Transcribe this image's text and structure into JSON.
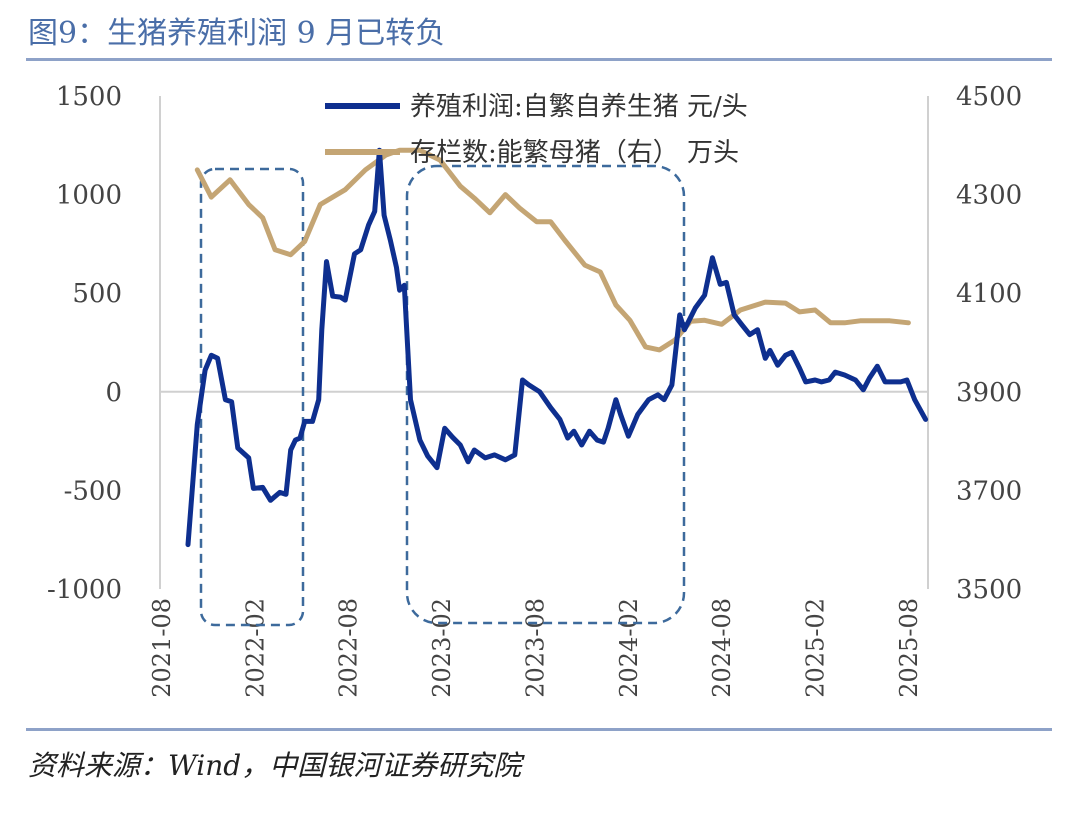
{
  "title": "图9：生猪养殖利润 9 月已转负",
  "source": "资料来源：Wind，中国银河证券研究院",
  "chart_data": {
    "type": "line",
    "title": "图9：生猪养殖利润 9 月已转负",
    "x_origin": "2021-08",
    "x_unit": "months since 2021-08",
    "x_ticks": [
      "2021-08",
      "2022-02",
      "2022-08",
      "2023-02",
      "2023-08",
      "2024-02",
      "2024-08",
      "2025-02",
      "2025-08"
    ],
    "y_left": {
      "range": [
        -1000,
        1500
      ],
      "ticks": [
        "-1000",
        "-500",
        "0",
        "500",
        "1000",
        "1500"
      ]
    },
    "y_right": {
      "range": [
        3500,
        4500
      ],
      "ticks": [
        "3500",
        "3700",
        "3900",
        "4100",
        "4300",
        "4500"
      ]
    },
    "legend_position": "top-center",
    "grid": false,
    "series": [
      {
        "name": "养殖利润:自繁自养生猪 元/头",
        "axis": "left",
        "color": "#0e2f8f",
        "points": [
          [
            1.8,
            -775
          ],
          [
            2.4,
            -165
          ],
          [
            2.9,
            110
          ],
          [
            3.3,
            185
          ],
          [
            3.7,
            170
          ],
          [
            4.2,
            -40
          ],
          [
            4.6,
            -50
          ],
          [
            5.0,
            -285
          ],
          [
            5.7,
            -335
          ],
          [
            6.0,
            -490
          ],
          [
            6.6,
            -485
          ],
          [
            7.1,
            -550
          ],
          [
            7.7,
            -510
          ],
          [
            8.1,
            -520
          ],
          [
            8.4,
            -295
          ],
          [
            8.7,
            -245
          ],
          [
            9.0,
            -235
          ],
          [
            9.3,
            -150
          ],
          [
            9.8,
            -150
          ],
          [
            10.2,
            -40
          ],
          [
            10.4,
            315
          ],
          [
            10.7,
            660
          ],
          [
            11.1,
            485
          ],
          [
            11.6,
            480
          ],
          [
            11.9,
            465
          ],
          [
            12.5,
            700
          ],
          [
            12.9,
            720
          ],
          [
            13.4,
            845
          ],
          [
            13.8,
            915
          ],
          [
            14.1,
            1225
          ],
          [
            14.4,
            895
          ],
          [
            14.8,
            770
          ],
          [
            15.2,
            630
          ],
          [
            15.4,
            515
          ],
          [
            15.7,
            540
          ],
          [
            16.1,
            -40
          ],
          [
            16.7,
            -245
          ],
          [
            17.2,
            -325
          ],
          [
            17.8,
            -385
          ],
          [
            18.3,
            -185
          ],
          [
            18.8,
            -230
          ],
          [
            19.3,
            -270
          ],
          [
            19.8,
            -355
          ],
          [
            20.2,
            -295
          ],
          [
            20.9,
            -335
          ],
          [
            21.5,
            -320
          ],
          [
            22.2,
            -345
          ],
          [
            22.8,
            -320
          ],
          [
            23.3,
            60
          ],
          [
            23.7,
            35
          ],
          [
            24.4,
            0
          ],
          [
            25.1,
            -80
          ],
          [
            25.7,
            -140
          ],
          [
            26.2,
            -235
          ],
          [
            26.6,
            -200
          ],
          [
            27.1,
            -270
          ],
          [
            27.6,
            -200
          ],
          [
            28.1,
            -245
          ],
          [
            28.5,
            -255
          ],
          [
            28.8,
            -185
          ],
          [
            29.3,
            -40
          ],
          [
            29.6,
            -115
          ],
          [
            30.1,
            -225
          ],
          [
            30.7,
            -115
          ],
          [
            31.4,
            -40
          ],
          [
            32.0,
            -15
          ],
          [
            32.4,
            -40
          ],
          [
            32.9,
            35
          ],
          [
            33.4,
            390
          ],
          [
            33.7,
            315
          ],
          [
            34.4,
            425
          ],
          [
            35.0,
            490
          ],
          [
            35.5,
            680
          ],
          [
            36.0,
            545
          ],
          [
            36.4,
            555
          ],
          [
            36.9,
            390
          ],
          [
            37.4,
            340
          ],
          [
            37.9,
            290
          ],
          [
            38.4,
            315
          ],
          [
            38.9,
            170
          ],
          [
            39.2,
            210
          ],
          [
            39.7,
            135
          ],
          [
            40.2,
            185
          ],
          [
            40.6,
            200
          ],
          [
            41.1,
            120
          ],
          [
            41.5,
            50
          ],
          [
            42.1,
            60
          ],
          [
            42.5,
            50
          ],
          [
            43.0,
            60
          ],
          [
            43.4,
            100
          ],
          [
            44.0,
            85
          ],
          [
            44.7,
            60
          ],
          [
            45.2,
            10
          ],
          [
            45.6,
            70
          ],
          [
            46.1,
            130
          ],
          [
            46.6,
            50
          ],
          [
            47.1,
            50
          ],
          [
            47.6,
            50
          ],
          [
            48.0,
            60
          ],
          [
            48.5,
            -40
          ],
          [
            49.2,
            -140
          ]
        ]
      },
      {
        "name": "存栏数:能繁母猪（右） 万头",
        "axis": "right",
        "color": "#c4a574",
        "points": [
          [
            2.4,
            4350
          ],
          [
            3.3,
            4295
          ],
          [
            4.5,
            4330
          ],
          [
            5.7,
            4280
          ],
          [
            6.6,
            4253
          ],
          [
            7.4,
            4188
          ],
          [
            8.4,
            4178
          ],
          [
            9.3,
            4205
          ],
          [
            10.3,
            4280
          ],
          [
            11.9,
            4310
          ],
          [
            13.2,
            4350
          ],
          [
            14.5,
            4380
          ],
          [
            15.4,
            4390
          ],
          [
            16.7,
            4390
          ],
          [
            18.0,
            4370
          ],
          [
            19.3,
            4317
          ],
          [
            20.2,
            4293
          ],
          [
            21.2,
            4263
          ],
          [
            22.2,
            4300
          ],
          [
            23.1,
            4273
          ],
          [
            24.2,
            4245
          ],
          [
            25.1,
            4245
          ],
          [
            26.0,
            4208
          ],
          [
            27.3,
            4157
          ],
          [
            28.3,
            4143
          ],
          [
            29.3,
            4076
          ],
          [
            30.2,
            4045
          ],
          [
            31.2,
            3991
          ],
          [
            32.1,
            3985
          ],
          [
            33.1,
            4005
          ],
          [
            34.1,
            4043
          ],
          [
            35.0,
            4045
          ],
          [
            36.1,
            4037
          ],
          [
            37.3,
            4066
          ],
          [
            38.9,
            4082
          ],
          [
            40.2,
            4080
          ],
          [
            41.1,
            4062
          ],
          [
            42.1,
            4066
          ],
          [
            43.1,
            4040
          ],
          [
            44.0,
            4040
          ],
          [
            45.0,
            4044
          ],
          [
            46.9,
            4044
          ],
          [
            48.1,
            4040
          ]
        ]
      }
    ]
  }
}
